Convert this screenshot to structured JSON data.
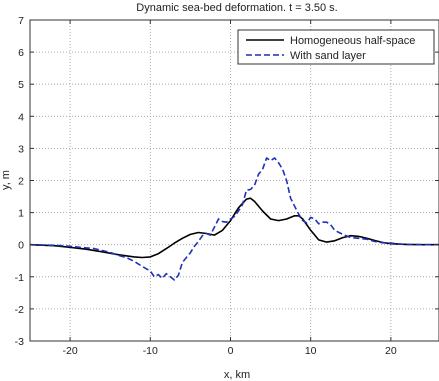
{
  "chart_data": {
    "type": "line",
    "title": "Dynamic sea-bed deformation. t = 3.50 s.",
    "xlabel": "x, km",
    "ylabel": "y, m",
    "xlim": [
      -25,
      26
    ],
    "ylim": [
      -3,
      7
    ],
    "xticks": [
      -20,
      -10,
      0,
      10,
      20
    ],
    "yticks": [
      -3,
      -2,
      -1,
      0,
      1,
      2,
      3,
      4,
      5,
      6,
      7
    ],
    "grid": true,
    "grid_style": "dotted",
    "legend_position": "top-right",
    "series": [
      {
        "name": "Homogeneous half-space",
        "color": "#000000",
        "style": "solid",
        "x": [
          -25,
          -22,
          -20,
          -18,
          -16,
          -14,
          -12,
          -11,
          -10,
          -9,
          -8,
          -7,
          -6,
          -5,
          -4,
          -3,
          -2,
          -1,
          0,
          1,
          2,
          2.5,
          3,
          4,
          5,
          6,
          7,
          8,
          8.5,
          9,
          10,
          11,
          12,
          13,
          14,
          15,
          16,
          17,
          18,
          19,
          20,
          22,
          24,
          26
        ],
        "y": [
          0,
          -0.03,
          -0.08,
          -0.14,
          -0.22,
          -0.31,
          -0.38,
          -0.4,
          -0.38,
          -0.28,
          -0.12,
          0.05,
          0.2,
          0.32,
          0.38,
          0.35,
          0.3,
          0.45,
          0.75,
          1.15,
          1.42,
          1.45,
          1.35,
          1.05,
          0.8,
          0.75,
          0.8,
          0.9,
          0.9,
          0.8,
          0.45,
          0.15,
          0.08,
          0.12,
          0.22,
          0.28,
          0.26,
          0.2,
          0.13,
          0.07,
          0.03,
          0.01,
          0,
          0
        ]
      },
      {
        "name": "With sand layer",
        "color": "#1f2fb8",
        "style": "dashed",
        "x": [
          -25,
          -22,
          -20,
          -18,
          -17,
          -16,
          -15,
          -14,
          -13,
          -12,
          -11,
          -10,
          -9.5,
          -9,
          -8.5,
          -8,
          -7.5,
          -7,
          -6.5,
          -6,
          -5.5,
          -5,
          -4.5,
          -4,
          -3.5,
          -3,
          -2.5,
          -2,
          -1.5,
          -1,
          -0.5,
          0,
          0.5,
          1,
          1.5,
          2,
          2.5,
          3,
          3.5,
          4,
          4.5,
          5,
          5.5,
          6,
          6.5,
          7,
          7.5,
          8,
          8.5,
          9,
          9.5,
          10,
          10.5,
          11,
          11.5,
          12,
          12.5,
          13,
          14,
          15,
          16,
          17,
          18,
          19,
          20,
          21,
          22,
          24,
          26
        ],
        "y": [
          0,
          -0.02,
          -0.05,
          -0.1,
          -0.12,
          -0.18,
          -0.24,
          -0.33,
          -0.4,
          -0.52,
          -0.68,
          -0.82,
          -1.0,
          -0.93,
          -1.05,
          -0.9,
          -1.0,
          -1.1,
          -0.95,
          -0.55,
          -0.4,
          -0.25,
          -0.05,
          0.1,
          0.28,
          0.35,
          0.3,
          0.55,
          0.8,
          0.72,
          0.7,
          0.8,
          0.88,
          1.05,
          1.25,
          1.7,
          1.72,
          1.85,
          2.2,
          2.35,
          2.7,
          2.62,
          2.7,
          2.55,
          2.35,
          2.0,
          1.45,
          1.2,
          0.95,
          0.75,
          0.68,
          0.85,
          0.8,
          0.65,
          0.7,
          0.7,
          0.62,
          0.45,
          0.32,
          0.22,
          0.2,
          0.17,
          0.1,
          0.06,
          0.05,
          0.02,
          0.01,
          0,
          0
        ]
      }
    ]
  }
}
